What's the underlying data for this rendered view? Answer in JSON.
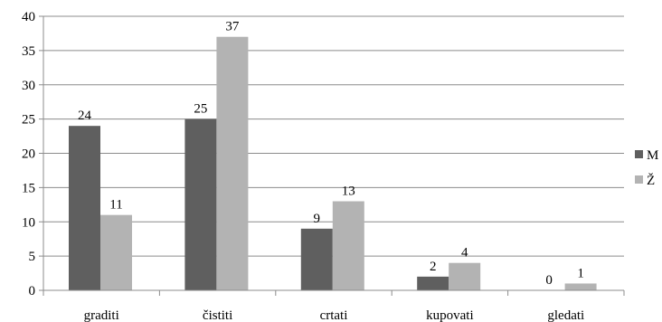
{
  "chart_data": {
    "type": "bar",
    "title": "",
    "xlabel": "",
    "ylabel": "",
    "categories": [
      "graditi",
      "čistiti",
      "crtati",
      "kupovati",
      "gledati"
    ],
    "series": [
      {
        "name": "M",
        "values": [
          24,
          25,
          9,
          2,
          0
        ],
        "color": "#5f5f5f"
      },
      {
        "name": "Ž",
        "values": [
          11,
          37,
          13,
          4,
          1
        ],
        "color": "#b3b3b3"
      }
    ],
    "ylim": [
      0,
      40
    ],
    "yticks": [
      0,
      5,
      10,
      15,
      20,
      25,
      30,
      35,
      40
    ],
    "grid": true,
    "legend": "right"
  }
}
